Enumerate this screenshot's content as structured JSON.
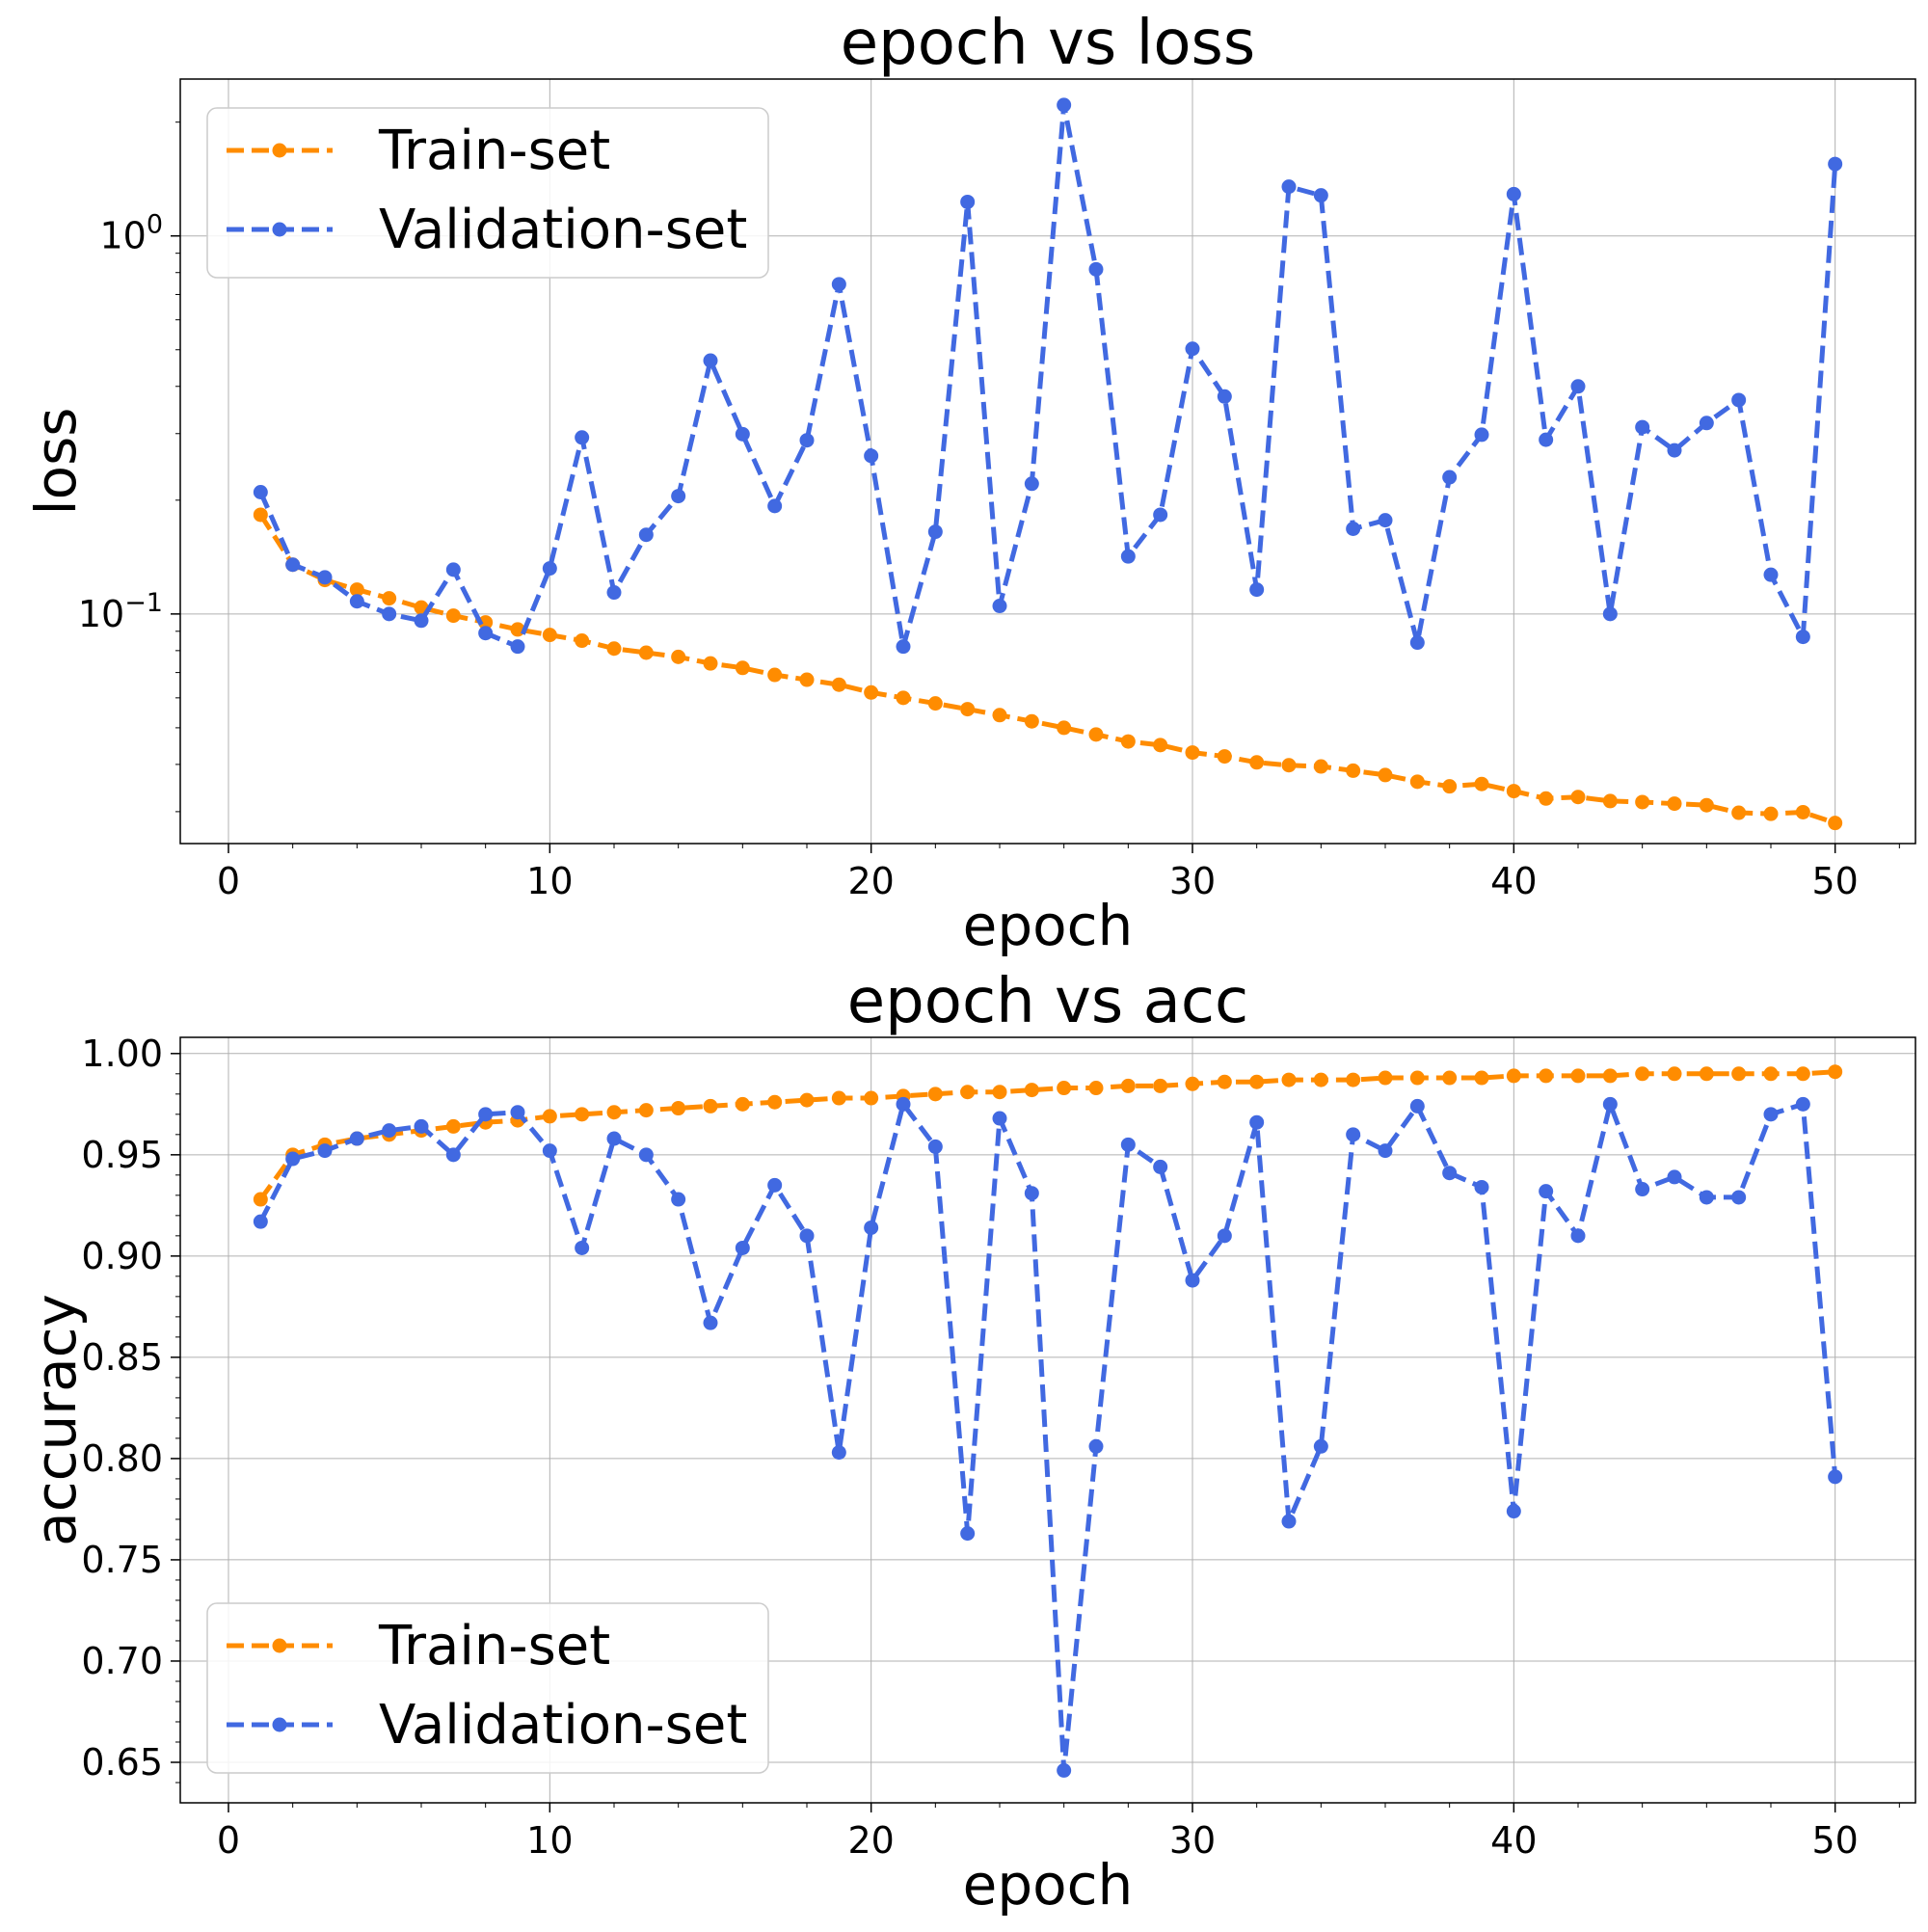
{
  "chart_data": [
    {
      "type": "line",
      "title": "epoch vs loss",
      "xlabel": "epoch",
      "ylabel": "loss",
      "yscale": "log",
      "xlim": [
        -1.5,
        52.5
      ],
      "ylim": [
        0.0247,
        2.6
      ],
      "x_ticks": [
        0,
        10,
        20,
        30,
        40,
        50
      ],
      "y_ticks": [
        {
          "value": 0.1,
          "base": "10",
          "exp": "−1"
        },
        {
          "value": 1.0,
          "base": "10",
          "exp": "0"
        }
      ],
      "grid": true,
      "legend": {
        "position": "top-left",
        "entries": [
          "Train-set",
          "Validation-set"
        ]
      },
      "x": [
        1,
        2,
        3,
        4,
        5,
        6,
        7,
        8,
        9,
        10,
        11,
        12,
        13,
        14,
        15,
        16,
        17,
        18,
        19,
        20,
        21,
        22,
        23,
        24,
        25,
        26,
        27,
        28,
        29,
        30,
        31,
        32,
        33,
        34,
        35,
        36,
        37,
        38,
        39,
        40,
        41,
        42,
        43,
        44,
        45,
        46,
        47,
        48,
        49,
        50
      ],
      "series": [
        {
          "name": "Train-set",
          "color": "#ff8c00",
          "values": [
            0.183,
            0.135,
            0.123,
            0.116,
            0.11,
            0.104,
            0.099,
            0.095,
            0.091,
            0.088,
            0.085,
            0.081,
            0.079,
            0.077,
            0.074,
            0.072,
            0.069,
            0.067,
            0.065,
            0.062,
            0.06,
            0.058,
            0.056,
            0.054,
            0.052,
            0.05,
            0.048,
            0.046,
            0.045,
            0.043,
            0.042,
            0.0405,
            0.0398,
            0.0395,
            0.0385,
            0.0375,
            0.036,
            0.035,
            0.0355,
            0.034,
            0.0325,
            0.0328,
            0.032,
            0.0318,
            0.0315,
            0.0312,
            0.0298,
            0.0296,
            0.0299,
            0.028
          ]
        },
        {
          "name": "Validation-set",
          "color": "#4169e1",
          "values": [
            0.21,
            0.135,
            0.125,
            0.108,
            0.1,
            0.096,
            0.131,
            0.089,
            0.082,
            0.132,
            0.293,
            0.114,
            0.162,
            0.205,
            0.468,
            0.299,
            0.193,
            0.288,
            0.745,
            0.262,
            0.082,
            0.165,
            1.23,
            0.105,
            0.221,
            2.22,
            0.816,
            0.142,
            0.183,
            0.503,
            0.376,
            0.116,
            1.35,
            1.28,
            0.168,
            0.177,
            0.084,
            0.23,
            0.298,
            1.29,
            0.289,
            0.4,
            0.1,
            0.312,
            0.271,
            0.32,
            0.368,
            0.127,
            0.087,
            1.55
          ]
        }
      ]
    },
    {
      "type": "line",
      "title": "epoch vs acc",
      "xlabel": "epoch",
      "ylabel": "accuracy",
      "yscale": "linear",
      "xlim": [
        -1.5,
        52.5
      ],
      "ylim": [
        0.63,
        1.008
      ],
      "x_ticks": [
        0,
        10,
        20,
        30,
        40,
        50
      ],
      "y_ticks": [
        "0.65",
        "0.70",
        "0.75",
        "0.80",
        "0.85",
        "0.90",
        "0.95",
        "1.00"
      ],
      "grid": true,
      "legend": {
        "position": "bottom-left",
        "entries": [
          "Train-set",
          "Validation-set"
        ]
      },
      "x": [
        1,
        2,
        3,
        4,
        5,
        6,
        7,
        8,
        9,
        10,
        11,
        12,
        13,
        14,
        15,
        16,
        17,
        18,
        19,
        20,
        21,
        22,
        23,
        24,
        25,
        26,
        27,
        28,
        29,
        30,
        31,
        32,
        33,
        34,
        35,
        36,
        37,
        38,
        39,
        40,
        41,
        42,
        43,
        44,
        45,
        46,
        47,
        48,
        49,
        50
      ],
      "series": [
        {
          "name": "Train-set",
          "color": "#ff8c00",
          "values": [
            0.928,
            0.95,
            0.955,
            0.958,
            0.96,
            0.962,
            0.964,
            0.966,
            0.967,
            0.969,
            0.97,
            0.971,
            0.972,
            0.973,
            0.974,
            0.975,
            0.976,
            0.977,
            0.978,
            0.978,
            0.979,
            0.98,
            0.981,
            0.981,
            0.982,
            0.983,
            0.983,
            0.984,
            0.984,
            0.985,
            0.986,
            0.986,
            0.987,
            0.987,
            0.987,
            0.988,
            0.988,
            0.988,
            0.988,
            0.989,
            0.989,
            0.989,
            0.989,
            0.99,
            0.99,
            0.99,
            0.99,
            0.99,
            0.99,
            0.991
          ]
        },
        {
          "name": "Validation-set",
          "color": "#4169e1",
          "values": [
            0.917,
            0.948,
            0.952,
            0.958,
            0.962,
            0.964,
            0.95,
            0.97,
            0.971,
            0.952,
            0.904,
            0.958,
            0.95,
            0.928,
            0.867,
            0.904,
            0.935,
            0.91,
            0.803,
            0.914,
            0.975,
            0.954,
            0.763,
            0.968,
            0.931,
            0.646,
            0.806,
            0.955,
            0.944,
            0.888,
            0.91,
            0.966,
            0.769,
            0.806,
            0.96,
            0.952,
            0.974,
            0.941,
            0.934,
            0.774,
            0.932,
            0.91,
            0.975,
            0.933,
            0.939,
            0.929,
            0.929,
            0.97,
            0.975,
            0.791
          ]
        }
      ]
    }
  ]
}
